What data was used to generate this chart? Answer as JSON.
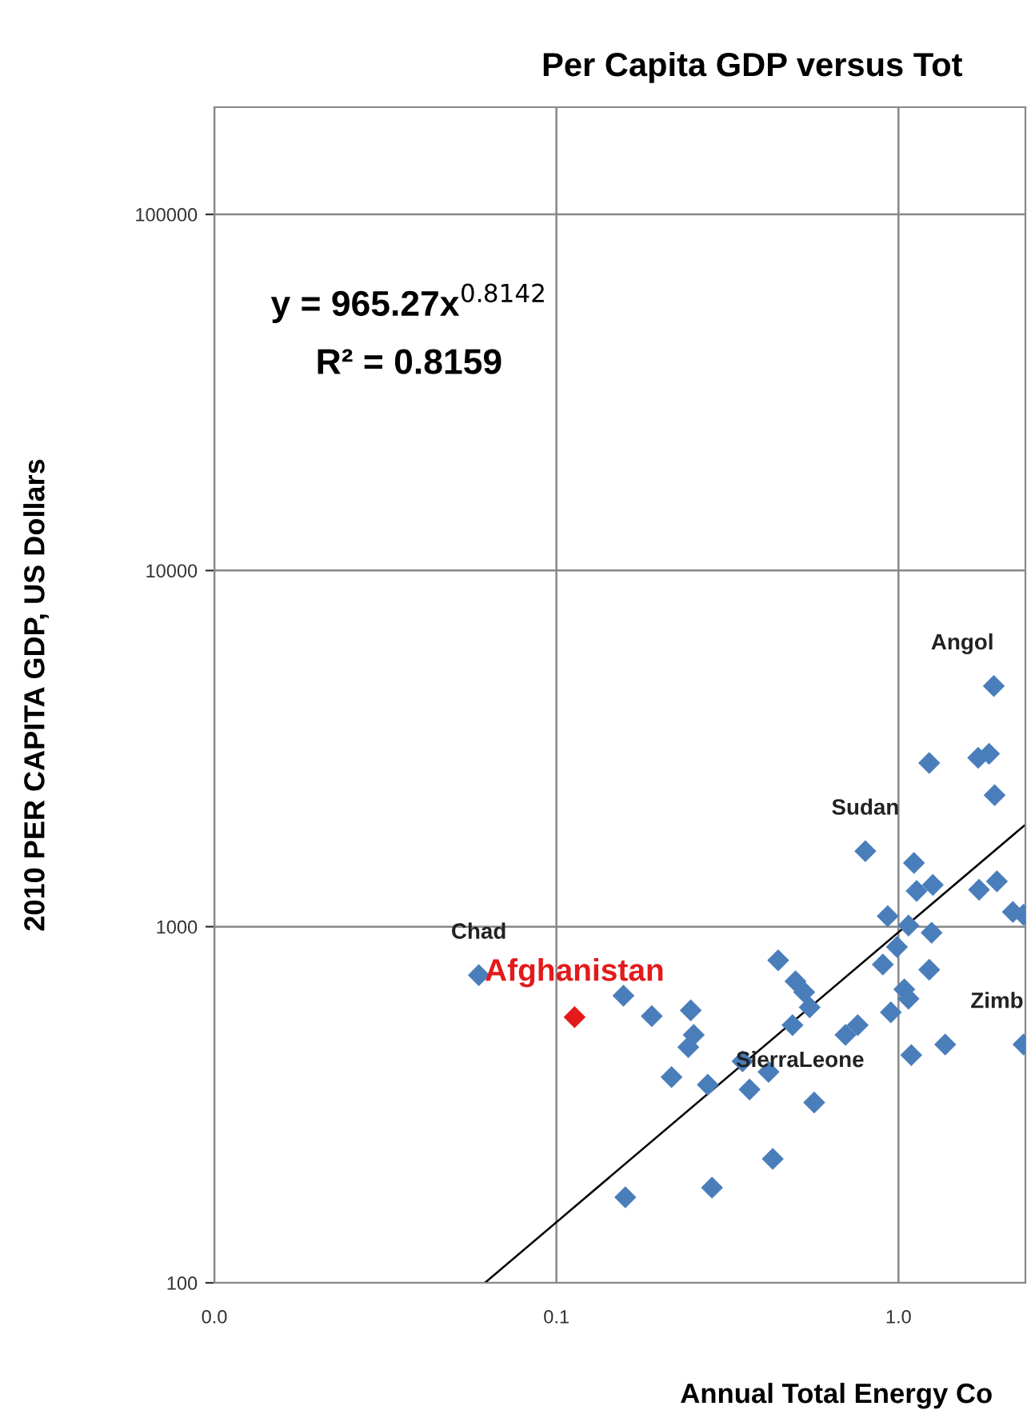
{
  "chart_data": {
    "type": "scatter",
    "title": "Per Capita GDP versus Tot",
    "xlabel": "Annual Total Energy Co",
    "ylabel": "2010 PER CAPITA GDP, US Dollars",
    "log": "xy",
    "grid": true,
    "marker": "diamond",
    "xlim": [
      0.01,
      2.35
    ],
    "ylim": [
      100,
      200000
    ],
    "xticks": [
      {
        "value": 0.01,
        "label": "0.0"
      },
      {
        "value": 0.1,
        "label": "0.1"
      },
      {
        "value": 1,
        "label": "1.0"
      }
    ],
    "yticks": [
      100,
      1000,
      10000,
      100000
    ],
    "series": [
      {
        "color": "#4a7ebb",
        "x": [
          1.9,
          1.23,
          1.71,
          1.84,
          1.91,
          0.8,
          1.11,
          1.13,
          1.26,
          1.72,
          1.94,
          2.16,
          2.32,
          0.93,
          0.0593,
          0.157,
          0.19,
          0.247,
          0.252,
          0.243,
          0.217,
          0.277,
          0.445,
          0.5,
          0.53,
          0.55,
          0.49,
          0.417,
          0.367,
          0.35,
          0.567,
          0.7,
          0.76,
          0.9,
          0.99,
          1.07,
          1.25,
          1.23,
          1.04,
          1.07,
          0.95,
          1.09,
          1.37,
          2.32,
          0.159,
          0.285,
          0.429
        ],
        "values": [
          4740,
          2880,
          2980,
          3060,
          2340,
          1630,
          1510,
          1260,
          1310,
          1270,
          1340,
          1100,
          1080,
          1070,
          731,
          640,
          561,
          582,
          497,
          459,
          378,
          360,
          805,
          702,
          655,
          594,
          529,
          391,
          349,
          419,
          321,
          497,
          529,
          783,
          877,
          1007,
          962,
          757,
          667,
          628,
          575,
          436,
          467,
          467,
          174,
          185,
          223
        ]
      },
      {
        "name": "Afghanistan",
        "color": "#e31a1c",
        "x": [
          0.113
        ],
        "values": [
          557
        ]
      },
      {
        "type": "line",
        "marker": "none",
        "color": "#000000",
        "x": [
          0.0618,
          2.35
        ],
        "values": [
          100,
          1935
        ]
      }
    ],
    "annotations": [
      "y = 965.27x$^{0.8142}$",
      "R² = 0.8159",
      {
        "text": "Chad",
        "x": 0.0593,
        "y": 731
      },
      {
        "text": "Sudan",
        "x": 0.8,
        "y": 1630
      },
      {
        "text": "Angol",
        "x": 1.9,
        "y": 4740
      },
      {
        "text": "SierraLeone",
        "x": 0.35,
        "y": 419
      },
      {
        "text": "Zimb",
        "x": 2.32,
        "y": 467
      }
    ]
  }
}
